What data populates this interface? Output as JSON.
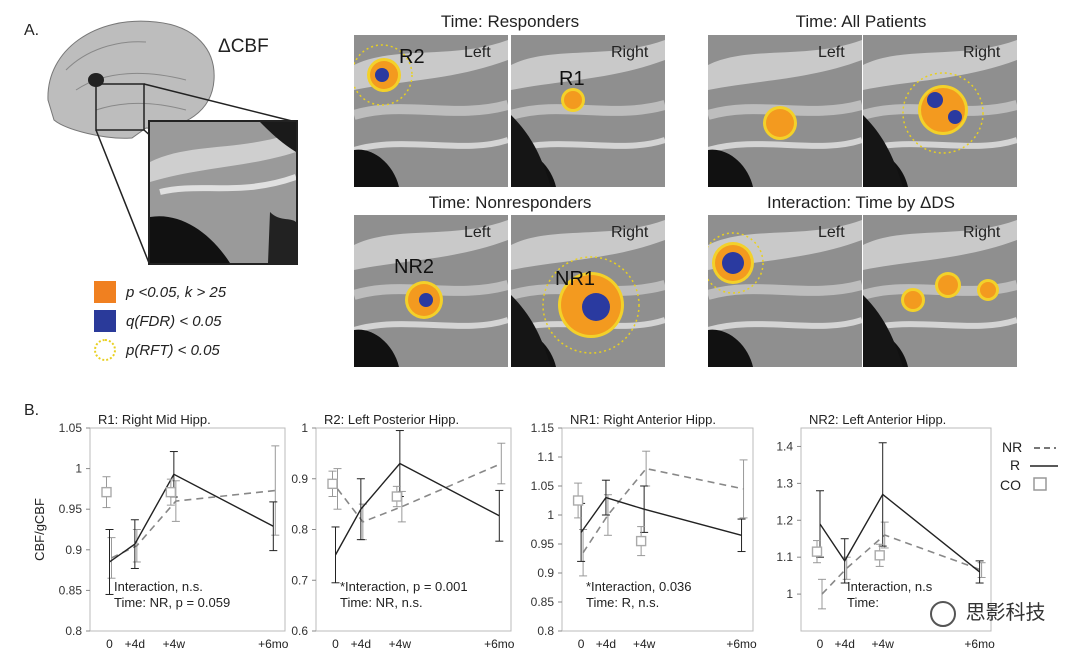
{
  "panel_a": {
    "label": "A.",
    "measure": "ΔCBF",
    "legend": [
      {
        "label": "p <0.05, k > 25",
        "color": "#f08020"
      },
      {
        "label": "q(FDR) < 0.05",
        "color": "#2a3a9a"
      },
      {
        "label": "p(RFT) < 0.05",
        "color": "#e8d020"
      }
    ],
    "maps": [
      {
        "title": "Time: Responders",
        "left_label": "Left",
        "right_label": "Right",
        "left_region": "R2",
        "right_region": "R1"
      },
      {
        "title": "Time: All Patients",
        "left_label": "Left",
        "right_label": "Right",
        "left_region": "",
        "right_region": ""
      },
      {
        "title": "Time: Nonresponders",
        "left_label": "Left",
        "right_label": "Right",
        "left_region": "NR2",
        "right_region": "NR1"
      },
      {
        "title": "Interaction: Time by ΔDS",
        "left_label": "Left",
        "right_label": "Right",
        "left_region": "",
        "right_region": ""
      }
    ]
  },
  "panel_b": {
    "label": "B.",
    "ylabel": "CBF/gCBF",
    "legend": [
      {
        "label": "NR",
        "style": "dashed"
      },
      {
        "label": "R",
        "style": "solid"
      },
      {
        "label": "CO",
        "style": "square"
      }
    ],
    "watermark": "思影科技"
  },
  "chart_data": [
    {
      "type": "line",
      "title": "R1: Right Mid Hipp.",
      "x": [
        "0",
        "+4d",
        "+4w",
        "+6mo"
      ],
      "ylim": [
        0.8,
        1.05
      ],
      "yticks": [
        "0.8",
        "0.85",
        "0.9",
        "0.95",
        "1",
        "1.05"
      ],
      "series": [
        {
          "name": "NR",
          "values": [
            0.89,
            0.905,
            0.96,
            0.973
          ],
          "err": [
            0.025,
            0.02,
            0.025,
            0.055
          ]
        },
        {
          "name": "R",
          "values": [
            0.885,
            0.907,
            0.993,
            0.929
          ],
          "err": [
            0.04,
            0.03,
            0.028,
            0.03
          ]
        },
        {
          "name": "CO",
          "values": [
            0.971,
            null,
            0.971,
            null
          ],
          "err": [
            0.019,
            null,
            0.016,
            null
          ]
        }
      ],
      "annotations": [
        "Interaction, n.s.",
        "Time: NR, p = 0.059"
      ]
    },
    {
      "type": "line",
      "title": "R2: Left Posterior Hipp.",
      "x": [
        "0",
        "+4d",
        "+4w",
        "+6mo"
      ],
      "ylim": [
        0.6,
        1.0
      ],
      "yticks": [
        "0.6",
        "0.7",
        "0.8",
        "0.9",
        "1"
      ],
      "series": [
        {
          "name": "NR",
          "values": [
            0.88,
            0.815,
            0.845,
            0.93
          ],
          "err": [
            0.04,
            0.035,
            0.03,
            0.04
          ]
        },
        {
          "name": "R",
          "values": [
            0.75,
            0.84,
            0.93,
            0.827
          ],
          "err": [
            0.055,
            0.06,
            0.065,
            0.05
          ]
        },
        {
          "name": "CO",
          "values": [
            0.89,
            null,
            0.865,
            null
          ],
          "err": [
            0.025,
            null,
            0.02,
            null
          ]
        }
      ],
      "annotations": [
        "*Interaction, p = 0.001",
        "Time: NR, n.s."
      ]
    },
    {
      "type": "line",
      "title": "NR1: Right Anterior Hipp.",
      "x": [
        "0",
        "+4d",
        "+4w",
        "+6mo"
      ],
      "ylim": [
        0.8,
        1.15
      ],
      "yticks": [
        "0.8",
        "0.85",
        "0.9",
        "0.95",
        "1",
        "1.05",
        "1.1",
        "1.15"
      ],
      "series": [
        {
          "name": "NR",
          "values": [
            0.935,
            1.0,
            1.08,
            1.045
          ],
          "err": [
            0.04,
            0.035,
            0.03,
            0.05
          ]
        },
        {
          "name": "R",
          "values": [
            0.97,
            1.03,
            1.01,
            0.965
          ],
          "err": [
            0.05,
            0.03,
            0.04,
            0.028
          ]
        },
        {
          "name": "CO",
          "values": [
            1.025,
            null,
            0.955,
            null
          ],
          "err": [
            0.03,
            null,
            0.025,
            null
          ]
        }
      ],
      "annotations": [
        "*Interaction, 0.036",
        "Time: R, n.s."
      ]
    },
    {
      "type": "line",
      "title": "NR2: Left Anterior Hipp.",
      "x": [
        "0",
        "+4d",
        "+4w",
        "+6mo"
      ],
      "ylim": [
        0.9,
        1.45
      ],
      "yticks": [
        "1",
        "1.1",
        "1.2",
        "1.3",
        "1.4"
      ],
      "series": [
        {
          "name": "NR",
          "values": [
            1.0,
            1.07,
            1.16,
            1.065
          ],
          "err": [
            0.04,
            0.03,
            0.035,
            0.02
          ]
        },
        {
          "name": "R",
          "values": [
            1.19,
            1.09,
            1.27,
            1.06
          ],
          "err": [
            0.09,
            0.06,
            0.14,
            0.03
          ]
        },
        {
          "name": "CO",
          "values": [
            1.115,
            null,
            1.105,
            null
          ],
          "err": [
            0.03,
            null,
            0.03,
            null
          ]
        }
      ],
      "annotations": [
        "Interaction, n.s",
        "Time: "
      ]
    }
  ]
}
